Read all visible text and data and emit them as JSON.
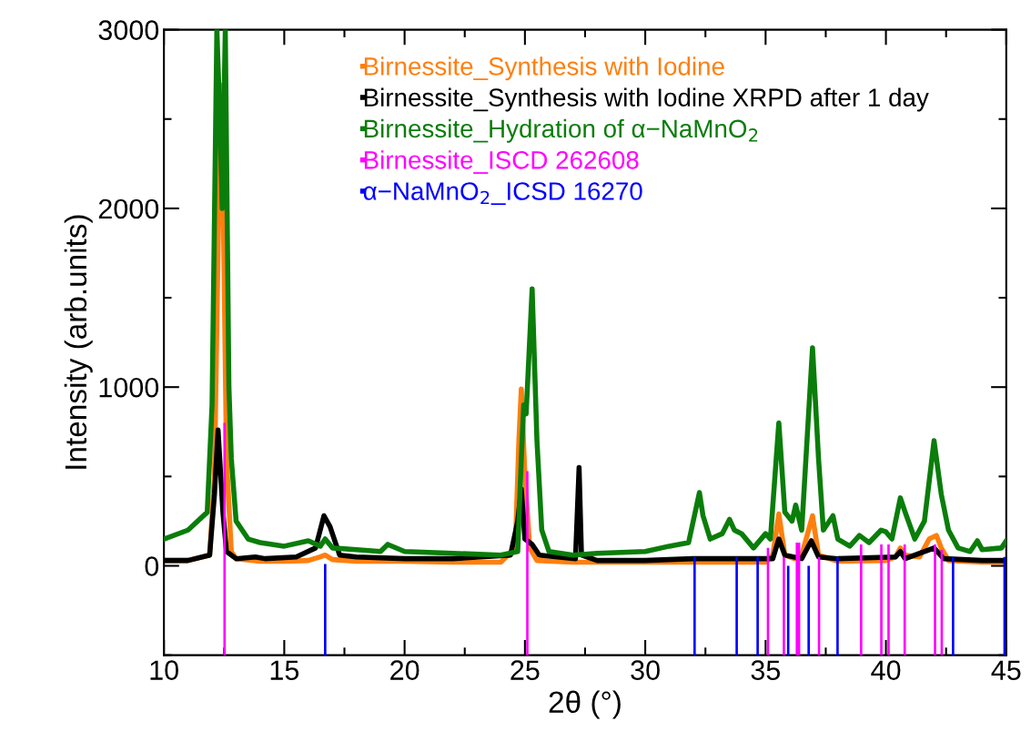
{
  "chart_data": {
    "type": "line",
    "xlabel": "2θ (°)",
    "ylabel": "Intensity (arb.units)",
    "xlim": [
      10,
      45
    ],
    "xticks": [
      10,
      15,
      20,
      25,
      30,
      35,
      40,
      45
    ],
    "ylim": [
      -500,
      3000
    ],
    "yticks": [
      0,
      1000,
      2000,
      3000
    ],
    "grid": false,
    "legend": "top",
    "series": [
      {
        "name": "Birnessite_Synthesis with Iodine",
        "color": "#ff7f0e",
        "x": [
          10,
          11,
          11.9,
          12.1,
          12.3,
          12.4,
          12.6,
          12.8,
          13,
          14,
          15,
          16,
          16.5,
          16.7,
          17,
          18,
          20,
          22,
          24,
          24.6,
          24.75,
          24.85,
          25.0,
          25.2,
          25.5,
          27,
          30,
          33,
          35,
          35.3,
          35.55,
          35.8,
          36.2,
          36.5,
          36.95,
          37.2,
          38,
          40,
          40.4,
          40.6,
          40.8,
          41.4,
          41.8,
          42.1,
          42.3,
          42.6,
          44,
          45
        ],
        "values": [
          30,
          30,
          60,
          500,
          2200,
          2690,
          600,
          80,
          40,
          25,
          25,
          30,
          50,
          60,
          35,
          25,
          25,
          20,
          20,
          100,
          700,
          990,
          500,
          100,
          30,
          20,
          20,
          20,
          20,
          60,
          290,
          60,
          40,
          60,
          280,
          60,
          25,
          30,
          50,
          100,
          60,
          50,
          150,
          170,
          100,
          30,
          20,
          20
        ]
      },
      {
        "name": "Birnessite_Synthesis with Iodine XRPD after 1 day",
        "color": "#000000",
        "x": [
          10,
          11,
          11.9,
          12.1,
          12.25,
          12.45,
          12.6,
          13,
          13.8,
          14.2,
          15.5,
          16.3,
          16.65,
          16.9,
          17.3,
          18,
          20,
          22,
          24.4,
          24.7,
          24.85,
          25.0,
          25.3,
          25.6,
          27.1,
          27.25,
          27.35,
          28,
          30,
          32,
          34,
          35.3,
          35.55,
          35.8,
          36.5,
          36.9,
          37.2,
          38,
          40.4,
          40.6,
          40.8,
          41.8,
          42.0,
          42.4,
          44,
          45
        ],
        "values": [
          30,
          30,
          60,
          400,
          760,
          300,
          80,
          40,
          50,
          40,
          50,
          100,
          280,
          220,
          60,
          50,
          40,
          40,
          60,
          250,
          430,
          150,
          120,
          60,
          40,
          550,
          60,
          30,
          30,
          40,
          40,
          40,
          150,
          60,
          40,
          140,
          50,
          40,
          50,
          80,
          40,
          90,
          100,
          40,
          30,
          30
        ]
      },
      {
        "name": "Birnessite_Hydration of α−NaMnO$_{2}$",
        "color": "#0a7d0a",
        "x": [
          10,
          11,
          11.8,
          12.0,
          12.2,
          12.3,
          12.42,
          12.55,
          12.7,
          12.8,
          13,
          13.5,
          14,
          15,
          16,
          16.5,
          16.7,
          17,
          18,
          19,
          19.3,
          20,
          22,
          24,
          24.7,
          24.85,
          24.95,
          25.05,
          25.3,
          25.5,
          25.7,
          26,
          27,
          28,
          30,
          31,
          31.8,
          32.25,
          32.4,
          32.7,
          33.2,
          33.5,
          33.7,
          34,
          34.5,
          35,
          35.2,
          35.55,
          35.8,
          36.1,
          36.25,
          36.5,
          36.95,
          37.2,
          37.4,
          37.8,
          38,
          38.5,
          38.9,
          39.3,
          39.8,
          40,
          40.25,
          40.6,
          40.8,
          41.2,
          41.6,
          42.0,
          42.3,
          42.6,
          43,
          43.5,
          43.8,
          44,
          44.8,
          45
        ],
        "values": [
          150,
          200,
          300,
          900,
          3000,
          2600,
          2000,
          3000,
          1000,
          600,
          250,
          150,
          130,
          110,
          140,
          110,
          150,
          100,
          90,
          80,
          120,
          80,
          70,
          60,
          80,
          600,
          900,
          850,
          1550,
          700,
          200,
          80,
          60,
          70,
          80,
          110,
          130,
          410,
          280,
          150,
          180,
          260,
          200,
          180,
          100,
          180,
          150,
          800,
          300,
          250,
          340,
          200,
          1220,
          600,
          200,
          280,
          150,
          110,
          170,
          130,
          200,
          190,
          150,
          380,
          300,
          150,
          250,
          700,
          400,
          200,
          100,
          80,
          140,
          90,
          100,
          140
        ]
      },
      {
        "name": "Birnessite_ISCD 262608",
        "color": "#ff00ff",
        "type": "bar",
        "x": [
          12.52,
          25.1,
          35.1,
          35.76,
          36.3,
          36.39,
          37.22,
          38.97,
          39.81,
          40.11,
          40.78,
          42.04,
          42.32
        ],
        "base": [
          -500,
          -500,
          -500,
          -500,
          -500,
          -500,
          -500,
          -500,
          -500,
          -500,
          -500,
          -500,
          -500
        ],
        "values": [
          1300,
          1030,
          600,
          550,
          630,
          630,
          550,
          620,
          620,
          620,
          620,
          620,
          590
        ]
      },
      {
        "name": "α−NaMnO$_{2}$_ICSD 16270",
        "color": "#0000ff",
        "type": "bar",
        "x": [
          16.7,
          32.05,
          33.8,
          34.67,
          35.94,
          36.79,
          37.99,
          42.79,
          44.93
        ],
        "base": [
          -500,
          -500,
          -500,
          -500,
          -500,
          -500,
          -500,
          -500,
          -500
        ],
        "values": [
          510,
          550,
          550,
          550,
          500,
          500,
          550,
          550,
          550
        ]
      }
    ]
  }
}
